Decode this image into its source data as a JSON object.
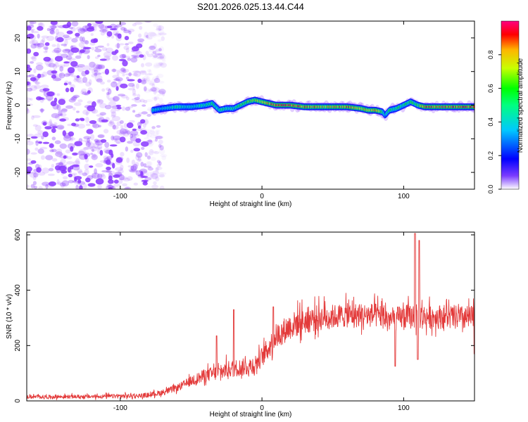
{
  "title": "S201.2026.025.13.44.C44",
  "colors": {
    "spectrogram_ramp": [
      "#ffffff",
      "#5a00ff",
      "#0000ff",
      "#00c8ff",
      "#00ff80",
      "#00ff00",
      "#c8ff00",
      "#ffb400",
      "#ff0000",
      "#ff0080"
    ],
    "noise_color": "#8a38ff",
    "snr_line": "#e33a3a",
    "axis": "#000000"
  },
  "chart_data": [
    {
      "type": "heatmap",
      "title": "S201.2026.025.13.44.C44",
      "xlabel": "Height of straight line (km)",
      "ylabel": "Frequency (Hz)",
      "xlim": [
        -166,
        150
      ],
      "ylim": [
        -25,
        25
      ],
      "xticks": [
        -100,
        0,
        100
      ],
      "xtick_labels": [
        "-100",
        "0",
        "100"
      ],
      "yticks": [
        -20,
        -10,
        0,
        10,
        20
      ],
      "ytick_labels": [
        "-20",
        "-10",
        "0",
        "10",
        "20"
      ],
      "noise_region_x": [
        -166,
        -75
      ],
      "signal_start_x": -77,
      "signal_ridge": {
        "x": [
          -77,
          -70,
          -60,
          -50,
          -40,
          -35,
          -30,
          -25,
          -20,
          -15,
          -10,
          -5,
          0,
          10,
          20,
          30,
          40,
          50,
          60,
          70,
          75,
          80,
          85,
          87,
          90,
          95,
          100,
          105,
          110,
          115,
          120,
          130,
          140,
          150
        ],
        "freq": [
          -1.5,
          -1,
          -0.5,
          -0.5,
          0,
          0.5,
          -1.5,
          -1,
          -1,
          0,
          1,
          1.5,
          1,
          0,
          0,
          -0.5,
          -0.5,
          -0.5,
          -0.5,
          -1,
          -1.5,
          -1.5,
          -2,
          -3,
          -1.5,
          -1,
          0,
          1,
          0,
          -0.5,
          -0.5,
          -0.5,
          -0.5,
          -0.5
        ],
        "amplitude": [
          0.45,
          0.4,
          0.5,
          0.45,
          0.5,
          0.55,
          0.5,
          0.55,
          0.5,
          0.6,
          0.65,
          0.7,
          0.75,
          0.9,
          0.95,
          0.85,
          0.8,
          0.82,
          0.85,
          0.8,
          0.75,
          0.85,
          0.6,
          0.4,
          0.55,
          0.6,
          0.55,
          0.6,
          0.6,
          0.85,
          0.9,
          0.9,
          0.9,
          0.9
        ]
      },
      "colorbar": {
        "label": "Normalized spectral amplitude",
        "range": [
          0.0,
          1.0
        ],
        "ticks": [
          0.0,
          0.2,
          0.4,
          0.6,
          0.8
        ],
        "tick_labels": [
          "0.0",
          "0.2",
          "0.4",
          "0.6",
          "0.8"
        ]
      }
    },
    {
      "type": "line",
      "xlabel": "Height of straight line (km)",
      "ylabel": "SNR (10 * v/v)",
      "xlim": [
        -166,
        150
      ],
      "ylim": [
        0,
        610
      ],
      "xticks": [
        -100,
        0,
        100
      ],
      "xtick_labels": [
        "-100",
        "0",
        "100"
      ],
      "yticks": [
        0,
        200,
        400,
        600
      ],
      "ytick_labels": [
        "0",
        "200",
        "400",
        "600"
      ],
      "series": [
        {
          "name": "SNR",
          "x": [
            -166,
            -150,
            -120,
            -90,
            -80,
            -70,
            -60,
            -50,
            -40,
            -30,
            -25,
            -20,
            -10,
            -5,
            0,
            5,
            10,
            20,
            30,
            40,
            50,
            60,
            70,
            80,
            85,
            90,
            94,
            100,
            105,
            107,
            109,
            111,
            113,
            120,
            130,
            140,
            150
          ],
          "base": [
            14,
            14,
            15,
            17,
            20,
            30,
            45,
            70,
            90,
            100,
            110,
            115,
            120,
            130,
            155,
            190,
            230,
            265,
            285,
            295,
            300,
            305,
            305,
            305,
            300,
            290,
            290,
            300,
            300,
            300,
            300,
            300,
            300,
            300,
            300,
            295,
            295
          ],
          "amp": [
            8,
            8,
            9,
            10,
            11,
            13,
            16,
            22,
            30,
            35,
            38,
            38,
            40,
            42,
            45,
            50,
            55,
            60,
            60,
            58,
            55,
            55,
            55,
            55,
            55,
            55,
            55,
            55,
            55,
            55,
            55,
            55,
            55,
            55,
            55,
            55,
            55
          ],
          "spikes": [
            {
              "x": -32,
              "value": 235
            },
            {
              "x": -20,
              "value": 330
            },
            {
              "x": 8,
              "value": 340
            },
            {
              "x": 94,
              "value": 125
            },
            {
              "x": 108,
              "value": 605
            },
            {
              "x": 110,
              "value": 150
            },
            {
              "x": 111,
              "value": 580
            },
            {
              "x": 150,
              "value": 170
            }
          ]
        }
      ]
    }
  ]
}
